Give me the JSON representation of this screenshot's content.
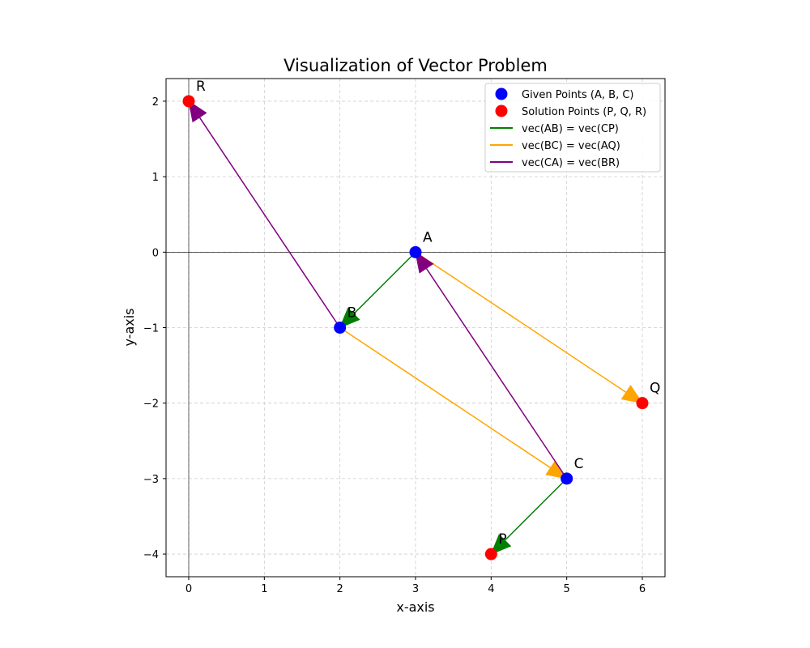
{
  "chart_data": {
    "type": "scatter",
    "title": "Visualization of Vector Problem",
    "xlabel": "x-axis",
    "ylabel": "y-axis",
    "xlim": [
      -0.3,
      6.3
    ],
    "ylim": [
      -4.3,
      2.3
    ],
    "xticks": [
      0,
      1,
      2,
      3,
      4,
      5,
      6
    ],
    "yticks": [
      -4,
      -3,
      -2,
      -1,
      0,
      1,
      2
    ],
    "grid": true,
    "legend_position": "top-right",
    "points": [
      {
        "label": "A",
        "x": 3,
        "y": 0,
        "group": "given"
      },
      {
        "label": "B",
        "x": 2,
        "y": -1,
        "group": "given"
      },
      {
        "label": "C",
        "x": 5,
        "y": -3,
        "group": "given"
      },
      {
        "label": "P",
        "x": 4,
        "y": -4,
        "group": "solution"
      },
      {
        "label": "Q",
        "x": 6,
        "y": -2,
        "group": "solution"
      },
      {
        "label": "R",
        "x": 0,
        "y": 2,
        "group": "solution"
      }
    ],
    "arrows": [
      {
        "series": "vec(AB) = vec(CP)",
        "from": [
          3,
          0
        ],
        "to": [
          2,
          -1
        ],
        "color": "#008000"
      },
      {
        "series": "vec(AB) = vec(CP)",
        "from": [
          5,
          -3
        ],
        "to": [
          4,
          -4
        ],
        "color": "#008000"
      },
      {
        "series": "vec(BC) = vec(AQ)",
        "from": [
          2,
          -1
        ],
        "to": [
          5,
          -3
        ],
        "color": "#ffa500"
      },
      {
        "series": "vec(BC) = vec(AQ)",
        "from": [
          3,
          0
        ],
        "to": [
          6,
          -2
        ],
        "color": "#ffa500"
      },
      {
        "series": "vec(CA) = vec(BR)",
        "from": [
          5,
          -3
        ],
        "to": [
          3,
          0
        ],
        "color": "#800080"
      },
      {
        "series": "vec(CA) = vec(BR)",
        "from": [
          2,
          -1
        ],
        "to": [
          0,
          2
        ],
        "color": "#800080"
      }
    ],
    "legend": [
      {
        "label": "Given Points (A, B, C)",
        "kind": "marker",
        "color": "#0000ff"
      },
      {
        "label": "Solution Points (P, Q, R)",
        "kind": "marker",
        "color": "#ff0000"
      },
      {
        "label": "vec(AB) = vec(CP)",
        "kind": "line",
        "color": "#008000"
      },
      {
        "label": "vec(BC) = vec(AQ)",
        "kind": "line",
        "color": "#ffa500"
      },
      {
        "label": "vec(CA) = vec(BR)",
        "kind": "line",
        "color": "#800080"
      }
    ],
    "colors": {
      "given": "#0000ff",
      "solution": "#ff0000",
      "grid": "#cccccc",
      "axes_line": "#000000"
    }
  }
}
